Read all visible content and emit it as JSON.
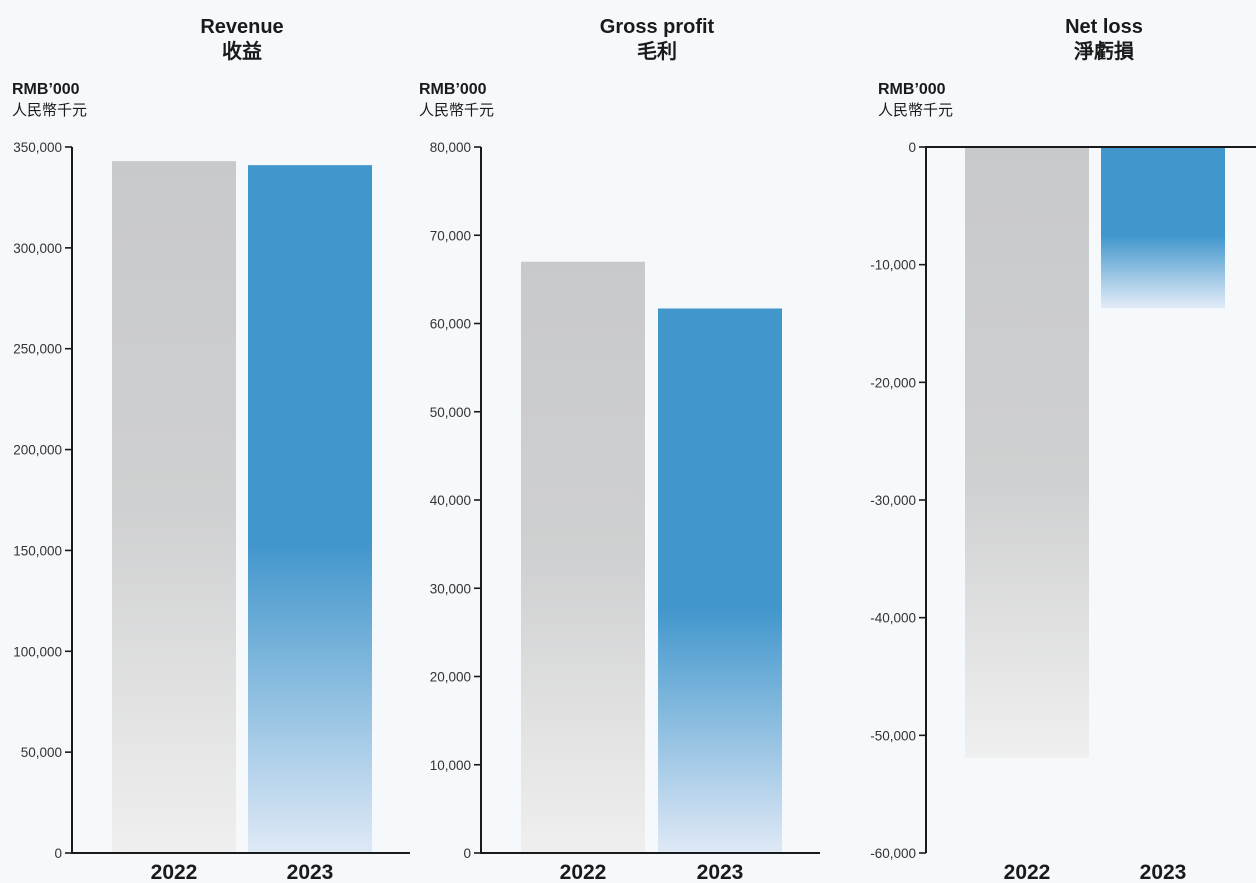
{
  "chart_data": [
    {
      "type": "bar",
      "title": "Revenue",
      "title_zh": "收益",
      "unit": "RMB’000",
      "unit_zh": "人民幣千元",
      "categories": [
        "2022",
        "2023"
      ],
      "values": [
        343000,
        341000
      ],
      "ylim": [
        0,
        350000
      ],
      "yticks": [
        0,
        50000,
        100000,
        150000,
        200000,
        250000,
        300000,
        350000
      ],
      "ytick_labels": [
        "0",
        "50,000",
        "100,000",
        "150,000",
        "200,000",
        "250,000",
        "300,000",
        "350,000"
      ],
      "colors": [
        "#c8c9cb",
        "#4196cc"
      ]
    },
    {
      "type": "bar",
      "title": "Gross profit",
      "title_zh": "毛利",
      "unit": "RMB’000",
      "unit_zh": "人民幣千元",
      "categories": [
        "2022",
        "2023"
      ],
      "values": [
        67000,
        61700
      ],
      "ylim": [
        0,
        80000
      ],
      "yticks": [
        0,
        10000,
        20000,
        30000,
        40000,
        50000,
        60000,
        70000,
        80000
      ],
      "ytick_labels": [
        "0",
        "10,000",
        "20,000",
        "30,000",
        "40,000",
        "50,000",
        "60,000",
        "70,000",
        "80,000"
      ],
      "colors": [
        "#c8c9cb",
        "#4196cc"
      ]
    },
    {
      "type": "bar",
      "title": "Net loss",
      "title_zh": "淨虧損",
      "unit": "RMB’000",
      "unit_zh": "人民幣千元",
      "categories": [
        "2022",
        "2023"
      ],
      "values": [
        -51900,
        -13700
      ],
      "ylim": [
        -60000,
        0
      ],
      "yticks": [
        0,
        -10000,
        -20000,
        -30000,
        -40000,
        -50000,
        -60000
      ],
      "ytick_labels": [
        "0",
        "-10,000",
        "-20,000",
        "-30,000",
        "-40,000",
        "-50,000",
        "-60,000"
      ],
      "colors": [
        "#c8c9cb",
        "#4196cc"
      ]
    }
  ]
}
